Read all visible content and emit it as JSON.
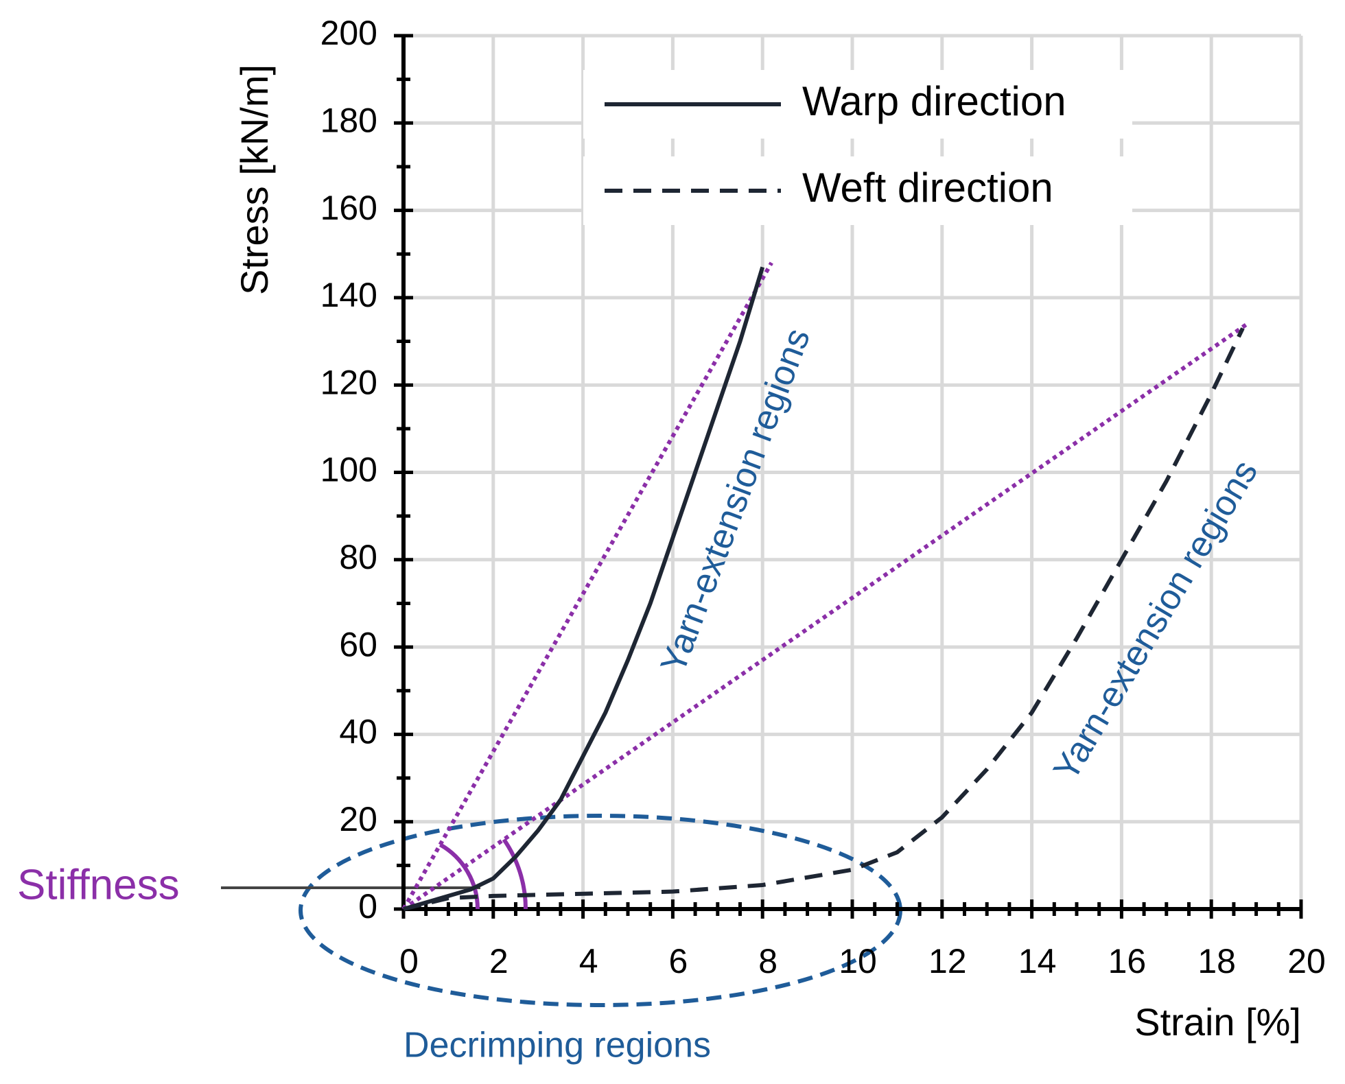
{
  "chart_data": {
    "type": "line",
    "x_label": "Strain [%]",
    "y_label": "Stress [kN/m]",
    "xlim": [
      0,
      20
    ],
    "ylim": [
      0,
      200
    ],
    "xticks": [
      0,
      2,
      4,
      6,
      8,
      10,
      12,
      14,
      16,
      18,
      20
    ],
    "yticks": [
      0,
      20,
      40,
      60,
      80,
      100,
      120,
      140,
      160,
      180,
      200
    ],
    "grid": true,
    "series": [
      {
        "name": "Warp direction",
        "color": "#1e2633",
        "dash": "solid",
        "x": [
          0,
          0.5,
          1,
          1.5,
          2,
          2.5,
          3,
          3.5,
          4,
          4.5,
          5,
          5.5,
          6,
          6.5,
          7,
          7.5,
          8
        ],
        "values": [
          0,
          1.5,
          3,
          4.5,
          7,
          12,
          18,
          25,
          35,
          45,
          57,
          70,
          85,
          100,
          115,
          130,
          147
        ]
      },
      {
        "name": "Weft direction",
        "color": "#1e2633",
        "dash": "dashed",
        "x": [
          0,
          1,
          2,
          4,
          6,
          8,
          10,
          11,
          12,
          13,
          14,
          15,
          16,
          17,
          18,
          18.7
        ],
        "values": [
          0,
          2.5,
          3,
          3.5,
          4,
          5.5,
          9,
          13,
          21,
          32,
          45,
          62,
          80,
          98,
          118,
          133
        ]
      }
    ],
    "reference_lines": [
      {
        "color": "#8b2fa8",
        "x": [
          0,
          8.2
        ],
        "values": [
          0,
          148
        ]
      },
      {
        "color": "#8b2fa8",
        "x": [
          0,
          18.8
        ],
        "values": [
          0,
          134
        ]
      }
    ],
    "annotations": {
      "warp_region": "Yarn-extension  regions",
      "weft_region": "Yarn-extension  regions",
      "decrimping": "Decrimping regions",
      "stiffness": "Stiffness"
    }
  }
}
